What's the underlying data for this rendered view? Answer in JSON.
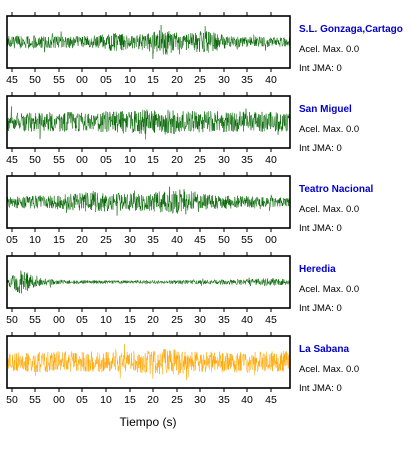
{
  "chart_data": {
    "type": "line",
    "xlabel": "Tiempo (s)",
    "panels": [
      {
        "station": "S.L. Gonzaga,Cartago",
        "accel_label": "Acel. Max. 0.0",
        "jma_label": "Int JMA: 0",
        "color": "#006400",
        "tick_labels": [
          "45",
          "50",
          "55",
          "00",
          "05",
          "10",
          "15",
          "20",
          "25",
          "30",
          "35",
          "40"
        ],
        "amplitude_envelope": [
          {
            "t": 0.0,
            "a": 0.5
          },
          {
            "t": 0.3,
            "a": 0.45
          },
          {
            "t": 0.38,
            "a": 0.7
          },
          {
            "t": 0.45,
            "a": 0.5
          },
          {
            "t": 0.56,
            "a": 1.0
          },
          {
            "t": 0.62,
            "a": 0.55
          },
          {
            "t": 0.7,
            "a": 0.9
          },
          {
            "t": 0.78,
            "a": 0.45
          },
          {
            "t": 1.0,
            "a": 0.35
          }
        ]
      },
      {
        "station": "San Miguel",
        "accel_label": "Acel. Max. 0.0",
        "jma_label": "Int JMA: 0",
        "color": "#006400",
        "tick_labels": [
          "45",
          "50",
          "55",
          "00",
          "05",
          "10",
          "15",
          "20",
          "25",
          "30",
          "35",
          "40"
        ],
        "amplitude_envelope": [
          {
            "t": 0.0,
            "a": 0.7
          },
          {
            "t": 0.2,
            "a": 0.75
          },
          {
            "t": 0.4,
            "a": 0.85
          },
          {
            "t": 0.5,
            "a": 1.0
          },
          {
            "t": 0.62,
            "a": 0.9
          },
          {
            "t": 0.8,
            "a": 0.8
          },
          {
            "t": 1.0,
            "a": 0.75
          }
        ]
      },
      {
        "station": "Teatro Nacional",
        "accel_label": "Acel. Max. 0.0",
        "jma_label": "Int JMA: 0",
        "color": "#006400",
        "tick_labels": [
          "05",
          "10",
          "15",
          "20",
          "25",
          "30",
          "35",
          "40",
          "45",
          "50",
          "55",
          "00"
        ],
        "amplitude_envelope": [
          {
            "t": 0.0,
            "a": 0.45
          },
          {
            "t": 0.2,
            "a": 0.55
          },
          {
            "t": 0.3,
            "a": 0.8
          },
          {
            "t": 0.42,
            "a": 0.65
          },
          {
            "t": 0.52,
            "a": 0.75
          },
          {
            "t": 0.62,
            "a": 1.0
          },
          {
            "t": 0.72,
            "a": 0.55
          },
          {
            "t": 1.0,
            "a": 0.35
          }
        ]
      },
      {
        "station": "Heredia",
        "accel_label": "Acel. Max. 0.0",
        "jma_label": "Int JMA: 0",
        "color": "#006400",
        "tick_labels": [
          "50",
          "55",
          "00",
          "05",
          "10",
          "15",
          "20",
          "25",
          "30",
          "35",
          "40",
          "45"
        ],
        "amplitude_envelope": [
          {
            "t": 0.0,
            "a": 0.2
          },
          {
            "t": 0.05,
            "a": 1.0
          },
          {
            "t": 0.1,
            "a": 0.35
          },
          {
            "t": 0.2,
            "a": 0.15
          },
          {
            "t": 0.4,
            "a": 0.12
          },
          {
            "t": 0.6,
            "a": 0.15
          },
          {
            "t": 0.8,
            "a": 0.2
          },
          {
            "t": 0.93,
            "a": 0.3
          },
          {
            "t": 1.0,
            "a": 0.2
          }
        ]
      },
      {
        "station": "La Sabana",
        "accel_label": "Acel. Max. 0.0",
        "jma_label": "Int JMA: 0",
        "color": "#ffa500",
        "tick_labels": [
          "50",
          "55",
          "00",
          "05",
          "10",
          "15",
          "20",
          "25",
          "30",
          "35",
          "40",
          "45"
        ],
        "amplitude_envelope": [
          {
            "t": 0.0,
            "a": 0.7
          },
          {
            "t": 0.2,
            "a": 0.85
          },
          {
            "t": 0.4,
            "a": 0.75
          },
          {
            "t": 0.56,
            "a": 1.0
          },
          {
            "t": 0.7,
            "a": 0.8
          },
          {
            "t": 1.0,
            "a": 0.85
          }
        ]
      }
    ]
  }
}
